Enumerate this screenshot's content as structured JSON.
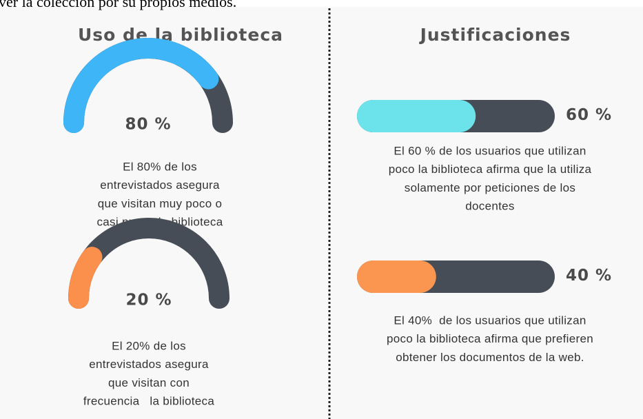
{
  "header_fragment": "ver la colección por su propios medios.",
  "left": {
    "title": "Uso de la biblioteca",
    "gauges": [
      {
        "value": 80,
        "value_label": "80 %",
        "color": "#3db5f7",
        "description": [
          "El 80% de los",
          "entrevistados asegura",
          "que visitan muy poco o",
          "casi nunca la biblioteca"
        ]
      },
      {
        "value": 20,
        "value_label": "20 %",
        "color": "#fb8f4c",
        "description": [
          "El 20% de los",
          "entrevistados asegura",
          "que visitan con",
          "frecuencia   la biblioteca"
        ]
      }
    ]
  },
  "right": {
    "title": "Justificaciones",
    "bars": [
      {
        "value": 60,
        "value_label": "60 %",
        "color": "#6ce3ea",
        "description": [
          "El 60 % de los usuarios que utilizan",
          "poco la biblioteca afirma que la utiliza",
          "solamente por peticiones de los",
          "docentes"
        ]
      },
      {
        "value": 40,
        "value_label": "40 %",
        "color": "#fb9651",
        "description": [
          "El 40%  de los usuarios que utilizan",
          "poco la biblioteca afirma que prefieren",
          "obtener los documentos de la web."
        ]
      }
    ]
  }
}
